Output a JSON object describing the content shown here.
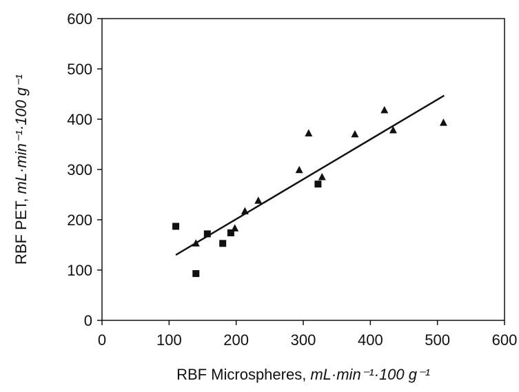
{
  "chart_data": {
    "type": "scatter",
    "title": "",
    "xlabel": "RBF Microspheres,",
    "xlabel_unit": "mL·min⁻¹·100 g⁻¹",
    "ylabel": "RBF PET,",
    "ylabel_unit": "mL·min⁻¹·100 g⁻¹",
    "xlim": [
      0,
      600
    ],
    "ylim": [
      0,
      600
    ],
    "x_ticks": [
      "0",
      "100",
      "200",
      "300",
      "400",
      "500",
      "600"
    ],
    "y_ticks": [
      "0",
      "100",
      "200",
      "300",
      "400",
      "500",
      "600"
    ],
    "grid": false,
    "legend": "none",
    "series": [
      {
        "marker": "square",
        "points": [
          {
            "x": 110,
            "y": 187
          },
          {
            "x": 140,
            "y": 93
          },
          {
            "x": 157,
            "y": 172
          },
          {
            "x": 180,
            "y": 153
          },
          {
            "x": 192,
            "y": 174
          },
          {
            "x": 322,
            "y": 271
          }
        ]
      },
      {
        "marker": "triangle",
        "points": [
          {
            "x": 140,
            "y": 153
          },
          {
            "x": 198,
            "y": 183
          },
          {
            "x": 213,
            "y": 217
          },
          {
            "x": 233,
            "y": 238
          },
          {
            "x": 294,
            "y": 299
          },
          {
            "x": 308,
            "y": 372
          },
          {
            "x": 328,
            "y": 285
          },
          {
            "x": 377,
            "y": 370
          },
          {
            "x": 421,
            "y": 418
          },
          {
            "x": 434,
            "y": 378
          },
          {
            "x": 509,
            "y": 393
          }
        ]
      }
    ],
    "regression_line": {
      "x": [
        110,
        510
      ],
      "y": [
        130,
        447
      ]
    },
    "colors": {
      "marker": "#111111",
      "line": "#111111",
      "axis": "#111111"
    }
  }
}
